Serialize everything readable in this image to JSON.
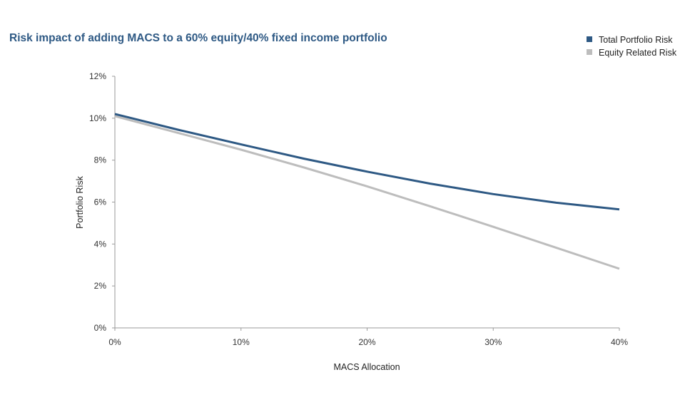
{
  "chart_data": {
    "type": "line",
    "title": "Risk impact of adding MACS to a 60% equity/40% fixed income portfolio",
    "xlabel": "MACS Allocation",
    "ylabel": "Portfolio Risk",
    "x": [
      0,
      5,
      10,
      15,
      20,
      25,
      30,
      35,
      40
    ],
    "x_ticks": [
      "0%",
      "10%",
      "20%",
      "30%",
      "40%"
    ],
    "x_tick_values": [
      0,
      10,
      20,
      30,
      40
    ],
    "xlim": [
      0,
      40
    ],
    "y_ticks": [
      "0%",
      "2%",
      "4%",
      "6%",
      "8%",
      "10%",
      "12%"
    ],
    "y_tick_values": [
      0,
      2,
      4,
      6,
      8,
      10,
      12
    ],
    "ylim": [
      0,
      12
    ],
    "grid": false,
    "legend_position": "top-right",
    "series": [
      {
        "name": "Total Portfolio Risk",
        "color": "#2e5984",
        "values": [
          10.2,
          9.45,
          8.75,
          8.07,
          7.45,
          6.88,
          6.38,
          5.97,
          5.65
        ]
      },
      {
        "name": "Equity Related Risk",
        "color": "#bdbdbd",
        "values": [
          10.1,
          9.3,
          8.5,
          7.65,
          6.75,
          5.8,
          4.82,
          3.82,
          2.82
        ]
      }
    ]
  }
}
